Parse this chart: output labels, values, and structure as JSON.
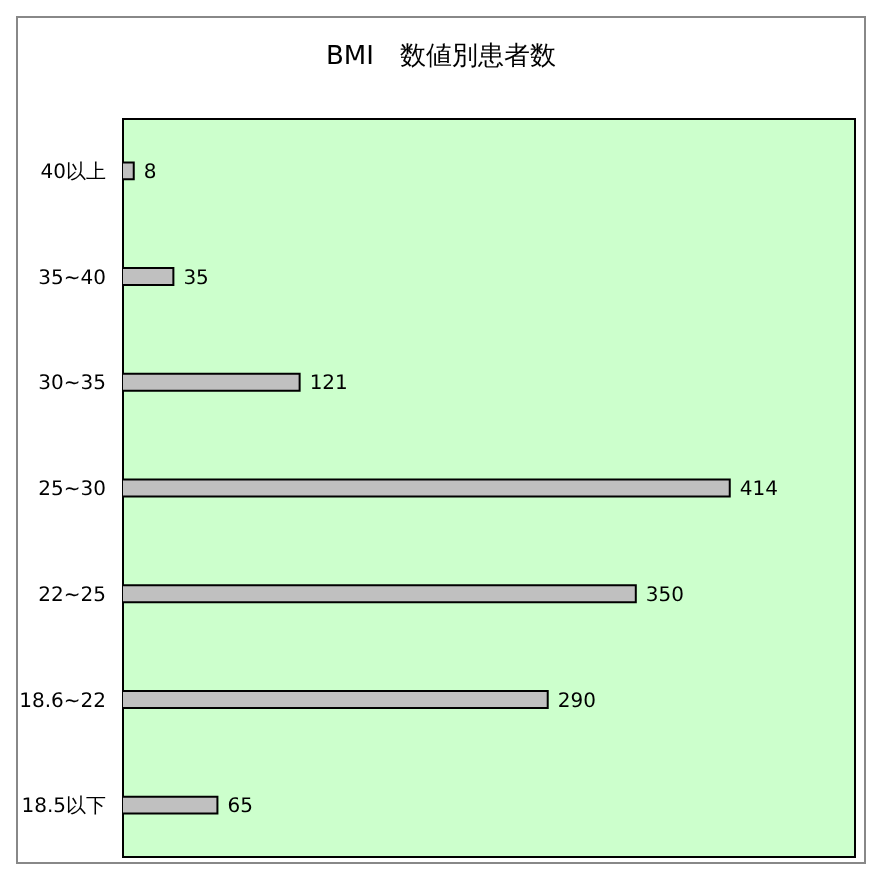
{
  "chart_data": {
    "type": "bar",
    "orientation": "horizontal",
    "title": "BMI　数値別患者数",
    "categories": [
      "40以上",
      "35~40",
      "30~35",
      "25~30",
      "22~25",
      "18.6~22",
      "18.5以下"
    ],
    "values": [
      8,
      35,
      121,
      414,
      350,
      290,
      65
    ],
    "color": "#c0c0c0",
    "xlim": [
      0,
      500
    ],
    "tick_labels": "y",
    "data_labels": true
  }
}
